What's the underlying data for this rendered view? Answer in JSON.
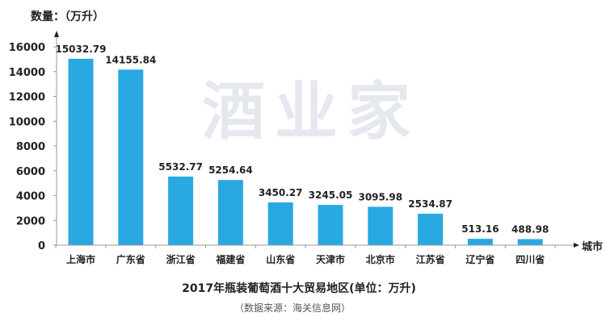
{
  "chart_data": {
    "type": "bar",
    "title": "2017年瓶装葡萄酒十大贸易地区(单位：万升)",
    "subtitle": "（数据来源：海关信息网）",
    "ylabel": "数量：（万升）",
    "xlabel": "城市",
    "categories": [
      "上海市",
      "广东省",
      "浙江省",
      "福建省",
      "山东省",
      "天津市",
      "北京市",
      "江苏省",
      "辽宁省",
      "四川省"
    ],
    "values": [
      15032.79,
      14155.84,
      5532.77,
      5254.64,
      3450.27,
      3245.05,
      3095.98,
      2534.87,
      513.16,
      488.98
    ],
    "data_labels": [
      "15032.79",
      "14155.84",
      "5532.77",
      "5254.64",
      "3450.27",
      "3245.05",
      "3095.98",
      "2534.87",
      "513.16",
      "488.98"
    ],
    "ylim": [
      0,
      16000
    ],
    "yticks": [
      "0",
      "2000",
      "4000",
      "6000",
      "8000",
      "10000",
      "12000",
      "14000",
      "16000"
    ],
    "grid": false,
    "bar_color": "#29a8e2",
    "watermark": "酒业家"
  }
}
